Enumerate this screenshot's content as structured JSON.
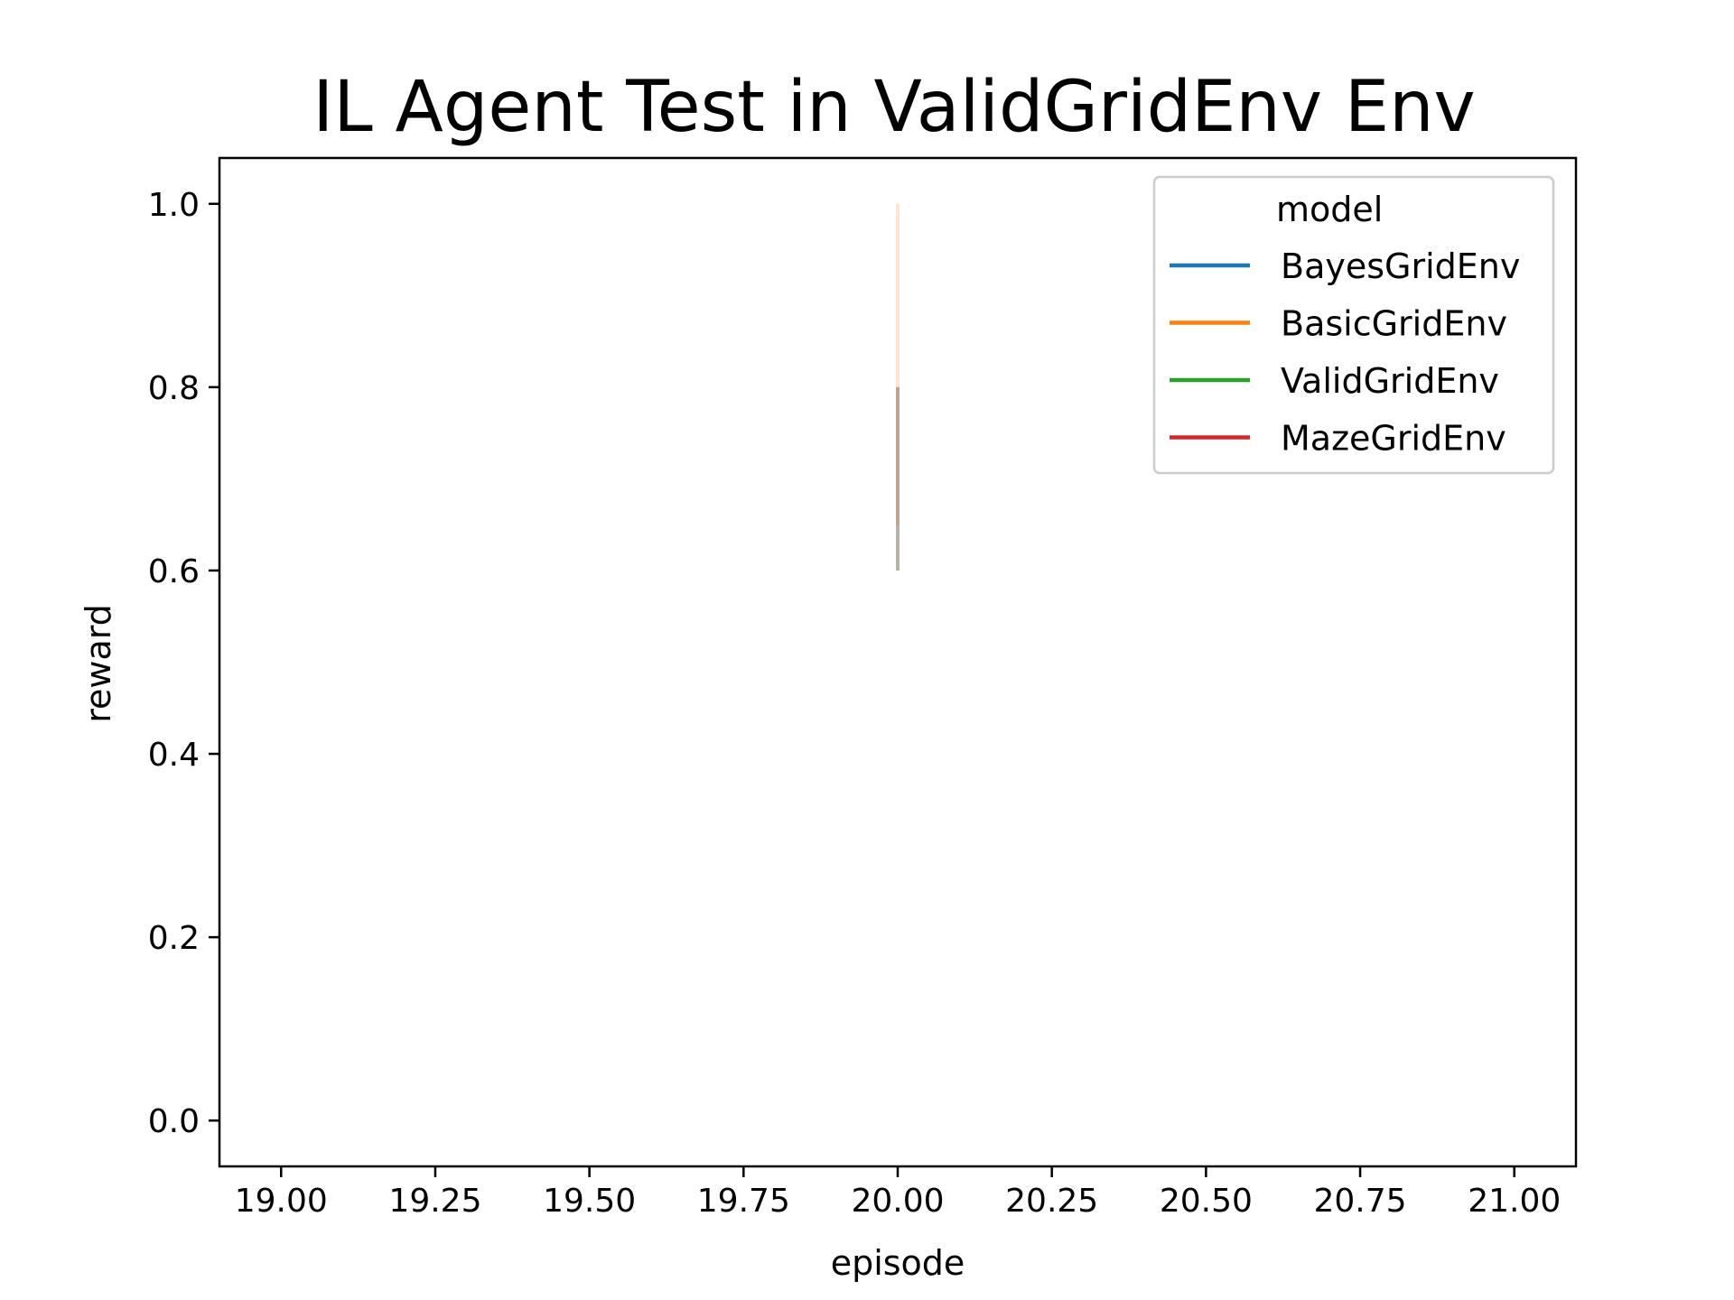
{
  "chart_data": {
    "type": "line",
    "title": "IL Agent Test in ValidGridEnv Env",
    "xlabel": "episode",
    "ylabel": "reward",
    "xlim": [
      18.9,
      21.1
    ],
    "ylim": [
      -0.05,
      1.05
    ],
    "xticks": [
      "19.00",
      "19.25",
      "19.50",
      "19.75",
      "20.00",
      "20.25",
      "20.50",
      "20.75",
      "21.00"
    ],
    "yticks": [
      "0.0",
      "0.2",
      "0.4",
      "0.6",
      "0.8",
      "1.0"
    ],
    "grid": false,
    "legend": {
      "title": "model",
      "position": "top-right",
      "entries": [
        {
          "name": "BayesGridEnv",
          "color": "#1f77b4"
        },
        {
          "name": "BasicGridEnv",
          "color": "#ff7f0e"
        },
        {
          "name": "ValidGridEnv",
          "color": "#2ca02c"
        },
        {
          "name": "MazeGridEnv",
          "color": "#d62728"
        }
      ]
    },
    "series": [
      {
        "name": "BayesGridEnv",
        "x": [
          20.0
        ],
        "y": [
          0.7
        ],
        "ci": [
          0.6,
          0.8
        ]
      },
      {
        "name": "BasicGridEnv",
        "x": [
          20.0
        ],
        "y": [
          0.8
        ],
        "ci": [
          0.65,
          1.0
        ]
      },
      {
        "name": "ValidGridEnv",
        "x": [
          20.0
        ],
        "y": [
          0.7
        ],
        "ci": [
          0.6,
          0.8
        ]
      },
      {
        "name": "MazeGridEnv",
        "x": [
          20.0
        ],
        "y": [
          0.7
        ],
        "ci": [
          0.6,
          0.8
        ]
      }
    ]
  }
}
